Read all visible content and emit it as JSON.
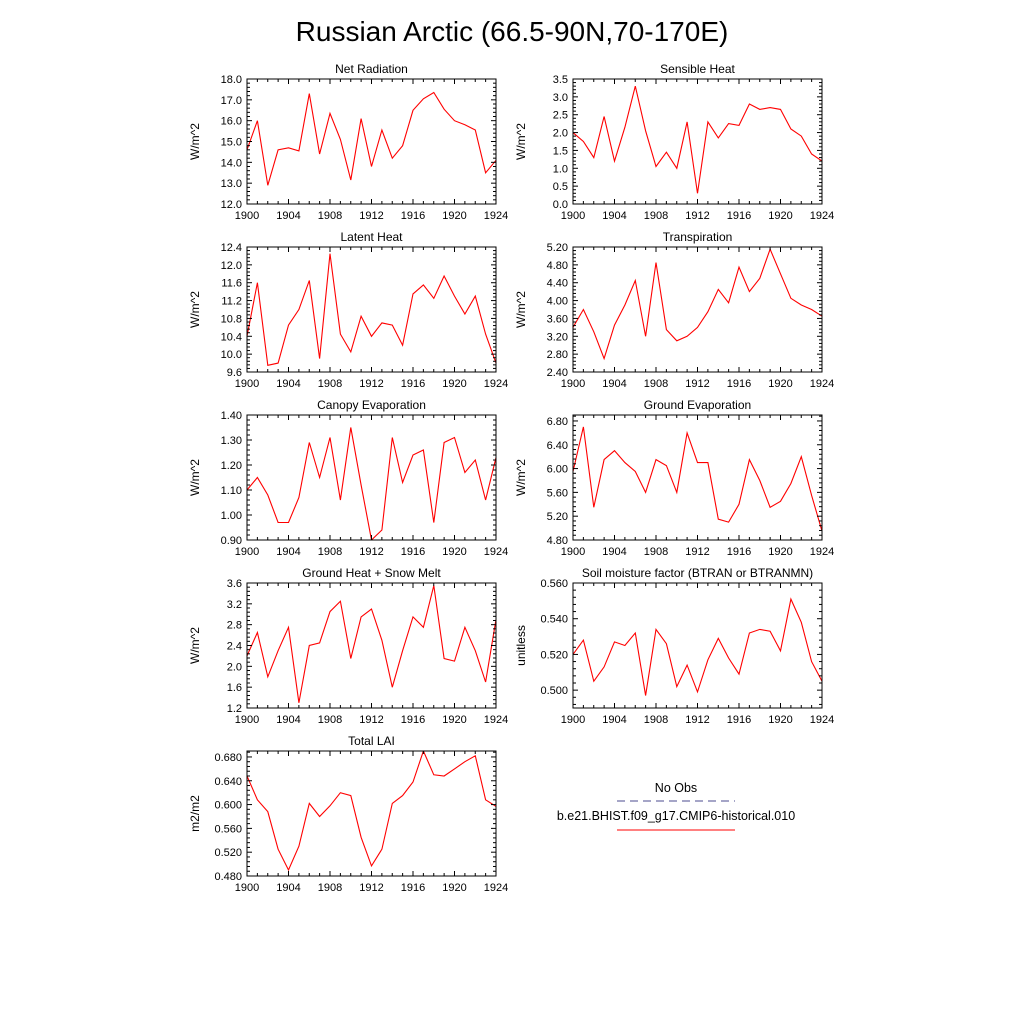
{
  "figure": {
    "title": "Russian Arctic (66.5-90N,70-170E)"
  },
  "legend": {
    "entries": [
      {
        "label": "No Obs",
        "color": "#4b4b8f",
        "style": "dashed"
      },
      {
        "label": "b.e21.BHIST.f09_g17.CMIP6-historical.010",
        "color": "#ff0000",
        "style": "solid"
      }
    ]
  },
  "chart_data": [
    {
      "type": "line",
      "title": "Net Radiation",
      "ylabel": "W/m^2",
      "xlabel": "",
      "xlim": [
        1900,
        1924
      ],
      "ylim": [
        12.0,
        18.0
      ],
      "xticks": [
        1900,
        1904,
        1908,
        1912,
        1916,
        1920,
        1924
      ],
      "yticks": [
        "12.0",
        "13.0",
        "14.0",
        "15.0",
        "16.0",
        "17.0",
        "18.0"
      ],
      "x": [
        1900,
        1901,
        1902,
        1903,
        1904,
        1905,
        1906,
        1907,
        1908,
        1909,
        1910,
        1911,
        1912,
        1913,
        1914,
        1915,
        1916,
        1917,
        1918,
        1919,
        1920,
        1921,
        1922,
        1923,
        1924
      ],
      "series": [
        {
          "color": "#ff0000",
          "values": [
            14.6,
            16.0,
            12.9,
            14.6,
            14.7,
            14.55,
            17.3,
            14.4,
            16.35,
            15.1,
            13.15,
            16.1,
            13.8,
            15.55,
            14.2,
            14.8,
            16.5,
            17.05,
            17.35,
            16.55,
            16.0,
            15.8,
            15.55,
            13.5,
            14.1
          ]
        }
      ]
    },
    {
      "type": "line",
      "title": "Sensible Heat",
      "ylabel": "W/m^2",
      "xlabel": "",
      "xlim": [
        1900,
        1924
      ],
      "ylim": [
        0.0,
        3.5
      ],
      "xticks": [
        1900,
        1904,
        1908,
        1912,
        1916,
        1920,
        1924
      ],
      "yticks": [
        "0.0",
        "0.5",
        "1.0",
        "1.5",
        "2.0",
        "2.5",
        "3.0",
        "3.5"
      ],
      "x": [
        1900,
        1901,
        1902,
        1903,
        1904,
        1905,
        1906,
        1907,
        1908,
        1909,
        1910,
        1911,
        1912,
        1913,
        1914,
        1915,
        1916,
        1917,
        1918,
        1919,
        1920,
        1921,
        1922,
        1923,
        1924
      ],
      "series": [
        {
          "color": "#ff0000",
          "values": [
            2.0,
            1.75,
            1.3,
            2.45,
            1.2,
            2.15,
            3.3,
            2.05,
            1.05,
            1.45,
            1.0,
            2.3,
            0.3,
            2.3,
            1.85,
            2.25,
            2.2,
            2.8,
            2.65,
            2.7,
            2.65,
            2.1,
            1.9,
            1.4,
            1.2
          ]
        }
      ]
    },
    {
      "type": "line",
      "title": "Latent Heat",
      "ylabel": "W/m^2",
      "xlabel": "",
      "xlim": [
        1900,
        1924
      ],
      "ylim": [
        9.6,
        12.4
      ],
      "xticks": [
        1900,
        1904,
        1908,
        1912,
        1916,
        1920,
        1924
      ],
      "yticks": [
        "9.6",
        "10.0",
        "10.4",
        "10.8",
        "11.2",
        "11.6",
        "12.0",
        "12.4"
      ],
      "x": [
        1900,
        1901,
        1902,
        1903,
        1904,
        1905,
        1906,
        1907,
        1908,
        1909,
        1910,
        1911,
        1912,
        1913,
        1914,
        1915,
        1916,
        1917,
        1918,
        1919,
        1920,
        1921,
        1922,
        1923,
        1924
      ],
      "series": [
        {
          "color": "#ff0000",
          "values": [
            10.4,
            11.6,
            9.75,
            9.8,
            10.65,
            11.0,
            11.65,
            9.9,
            12.25,
            10.45,
            10.05,
            10.85,
            10.4,
            10.7,
            10.65,
            10.2,
            11.35,
            11.55,
            11.25,
            11.75,
            11.3,
            10.9,
            11.3,
            10.45,
            9.8
          ]
        }
      ]
    },
    {
      "type": "line",
      "title": "Transpiration",
      "ylabel": "W/m^2",
      "xlabel": "",
      "xlim": [
        1900,
        1924
      ],
      "ylim": [
        2.4,
        5.2
      ],
      "xticks": [
        1900,
        1904,
        1908,
        1912,
        1916,
        1920,
        1924
      ],
      "yticks": [
        "2.40",
        "2.80",
        "3.20",
        "3.60",
        "4.00",
        "4.40",
        "4.80",
        "5.20"
      ],
      "x": [
        1900,
        1901,
        1902,
        1903,
        1904,
        1905,
        1906,
        1907,
        1908,
        1909,
        1910,
        1911,
        1912,
        1913,
        1914,
        1915,
        1916,
        1917,
        1918,
        1919,
        1920,
        1921,
        1922,
        1923,
        1924
      ],
      "series": [
        {
          "color": "#ff0000",
          "values": [
            3.4,
            3.8,
            3.3,
            2.7,
            3.45,
            3.9,
            4.45,
            3.2,
            4.85,
            3.35,
            3.1,
            3.2,
            3.4,
            3.75,
            4.25,
            3.95,
            4.75,
            4.2,
            4.5,
            5.15,
            4.6,
            4.05,
            3.9,
            3.8,
            3.65
          ]
        }
      ]
    },
    {
      "type": "line",
      "title": "Canopy Evaporation",
      "ylabel": "W/m^2",
      "xlabel": "",
      "xlim": [
        1900,
        1924
      ],
      "ylim": [
        0.9,
        1.4
      ],
      "xticks": [
        1900,
        1904,
        1908,
        1912,
        1916,
        1920,
        1924
      ],
      "yticks": [
        "0.90",
        "1.00",
        "1.10",
        "1.20",
        "1.30",
        "1.40"
      ],
      "x": [
        1900,
        1901,
        1902,
        1903,
        1904,
        1905,
        1906,
        1907,
        1908,
        1909,
        1910,
        1911,
        1912,
        1913,
        1914,
        1915,
        1916,
        1917,
        1918,
        1919,
        1920,
        1921,
        1922,
        1923,
        1924
      ],
      "series": [
        {
          "color": "#ff0000",
          "values": [
            1.1,
            1.15,
            1.08,
            0.97,
            0.97,
            1.07,
            1.29,
            1.15,
            1.31,
            1.06,
            1.35,
            1.12,
            0.9,
            0.94,
            1.31,
            1.13,
            1.24,
            1.26,
            0.97,
            1.29,
            1.31,
            1.17,
            1.22,
            1.06,
            1.23
          ]
        }
      ]
    },
    {
      "type": "line",
      "title": "Ground Evaporation",
      "ylabel": "W/m^2",
      "xlabel": "",
      "xlim": [
        1900,
        1924
      ],
      "ylim": [
        4.8,
        6.9
      ],
      "xticks": [
        1900,
        1904,
        1908,
        1912,
        1916,
        1920,
        1924
      ],
      "yticks": [
        "4.80",
        "5.20",
        "5.60",
        "6.00",
        "6.40",
        "6.80"
      ],
      "x": [
        1900,
        1901,
        1902,
        1903,
        1904,
        1905,
        1906,
        1907,
        1908,
        1909,
        1910,
        1911,
        1912,
        1913,
        1914,
        1915,
        1916,
        1917,
        1918,
        1919,
        1920,
        1921,
        1922,
        1923,
        1924
      ],
      "series": [
        {
          "color": "#ff0000",
          "values": [
            5.95,
            6.7,
            5.35,
            6.15,
            6.3,
            6.1,
            5.95,
            5.6,
            6.15,
            6.05,
            5.6,
            6.6,
            6.1,
            6.1,
            5.15,
            5.1,
            5.4,
            6.15,
            5.8,
            5.35,
            5.45,
            5.75,
            6.2,
            5.55,
            4.95
          ]
        }
      ]
    },
    {
      "type": "line",
      "title": "Ground Heat + Snow Melt",
      "ylabel": "W/m^2",
      "xlabel": "",
      "xlim": [
        1900,
        1924
      ],
      "ylim": [
        1.2,
        3.6
      ],
      "xticks": [
        1900,
        1904,
        1908,
        1912,
        1916,
        1920,
        1924
      ],
      "yticks": [
        "1.2",
        "1.6",
        "2.0",
        "2.4",
        "2.8",
        "3.2",
        "3.6"
      ],
      "x": [
        1900,
        1901,
        1902,
        1903,
        1904,
        1905,
        1906,
        1907,
        1908,
        1909,
        1910,
        1911,
        1912,
        1913,
        1914,
        1915,
        1916,
        1917,
        1918,
        1919,
        1920,
        1921,
        1922,
        1923,
        1924
      ],
      "series": [
        {
          "color": "#ff0000",
          "values": [
            2.2,
            2.65,
            1.8,
            2.3,
            2.75,
            1.3,
            2.4,
            2.45,
            3.05,
            3.25,
            2.15,
            2.95,
            3.1,
            2.5,
            1.6,
            2.3,
            2.95,
            2.75,
            3.55,
            2.15,
            2.1,
            2.75,
            2.3,
            1.7,
            2.9
          ]
        }
      ]
    },
    {
      "type": "line",
      "title": "Soil moisture factor (BTRAN or BTRANMN)",
      "ylabel": "unitless",
      "xlabel": "",
      "xlim": [
        1900,
        1924
      ],
      "ylim": [
        0.49,
        0.56
      ],
      "xticks": [
        1900,
        1904,
        1908,
        1912,
        1916,
        1920,
        1924
      ],
      "yticks": [
        "0.500",
        "0.520",
        "0.540",
        "0.560"
      ],
      "x": [
        1900,
        1901,
        1902,
        1903,
        1904,
        1905,
        1906,
        1907,
        1908,
        1909,
        1910,
        1911,
        1912,
        1913,
        1914,
        1915,
        1916,
        1917,
        1918,
        1919,
        1920,
        1921,
        1922,
        1923,
        1924
      ],
      "series": [
        {
          "color": "#ff0000",
          "values": [
            0.52,
            0.528,
            0.505,
            0.513,
            0.527,
            0.525,
            0.532,
            0.497,
            0.534,
            0.526,
            0.502,
            0.514,
            0.499,
            0.517,
            0.529,
            0.518,
            0.509,
            0.532,
            0.534,
            0.533,
            0.522,
            0.551,
            0.538,
            0.516,
            0.505
          ]
        }
      ]
    },
    {
      "type": "line",
      "title": "Total LAI",
      "ylabel": "m2/m2",
      "xlabel": "",
      "xlim": [
        1900,
        1924
      ],
      "ylim": [
        0.48,
        0.69
      ],
      "xticks": [
        1900,
        1904,
        1908,
        1912,
        1916,
        1920,
        1924
      ],
      "yticks": [
        "0.480",
        "0.520",
        "0.560",
        "0.600",
        "0.640",
        "0.680"
      ],
      "x": [
        1900,
        1901,
        1902,
        1903,
        1904,
        1905,
        1906,
        1907,
        1908,
        1909,
        1910,
        1911,
        1912,
        1913,
        1914,
        1915,
        1916,
        1917,
        1918,
        1919,
        1920,
        1921,
        1922,
        1923,
        1924
      ],
      "series": [
        {
          "color": "#ff0000",
          "values": [
            0.648,
            0.608,
            0.588,
            0.525,
            0.49,
            0.53,
            0.602,
            0.58,
            0.598,
            0.62,
            0.615,
            0.545,
            0.497,
            0.525,
            0.602,
            0.615,
            0.638,
            0.69,
            0.65,
            0.648,
            0.66,
            0.672,
            0.682,
            0.608,
            0.597
          ]
        }
      ]
    }
  ]
}
